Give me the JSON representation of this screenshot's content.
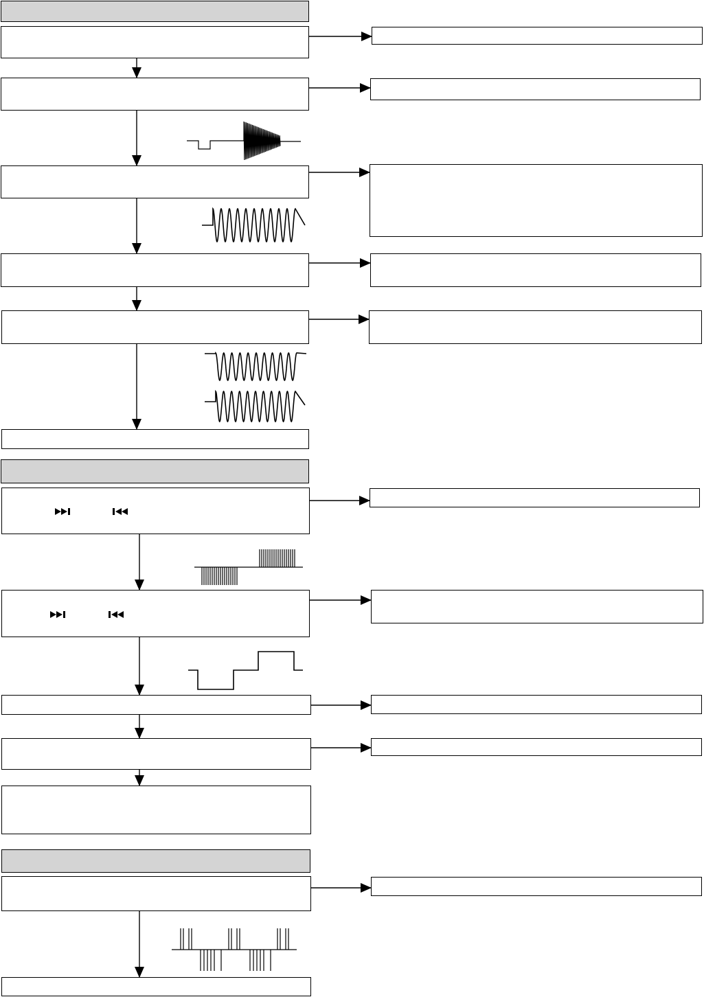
{
  "colors": {
    "line": "#000000",
    "header_fill": "#d4d4d4",
    "box_fill": "#ffffff"
  },
  "icons": {
    "next": "skip-next-icon",
    "prev": "skip-previous-icon"
  }
}
